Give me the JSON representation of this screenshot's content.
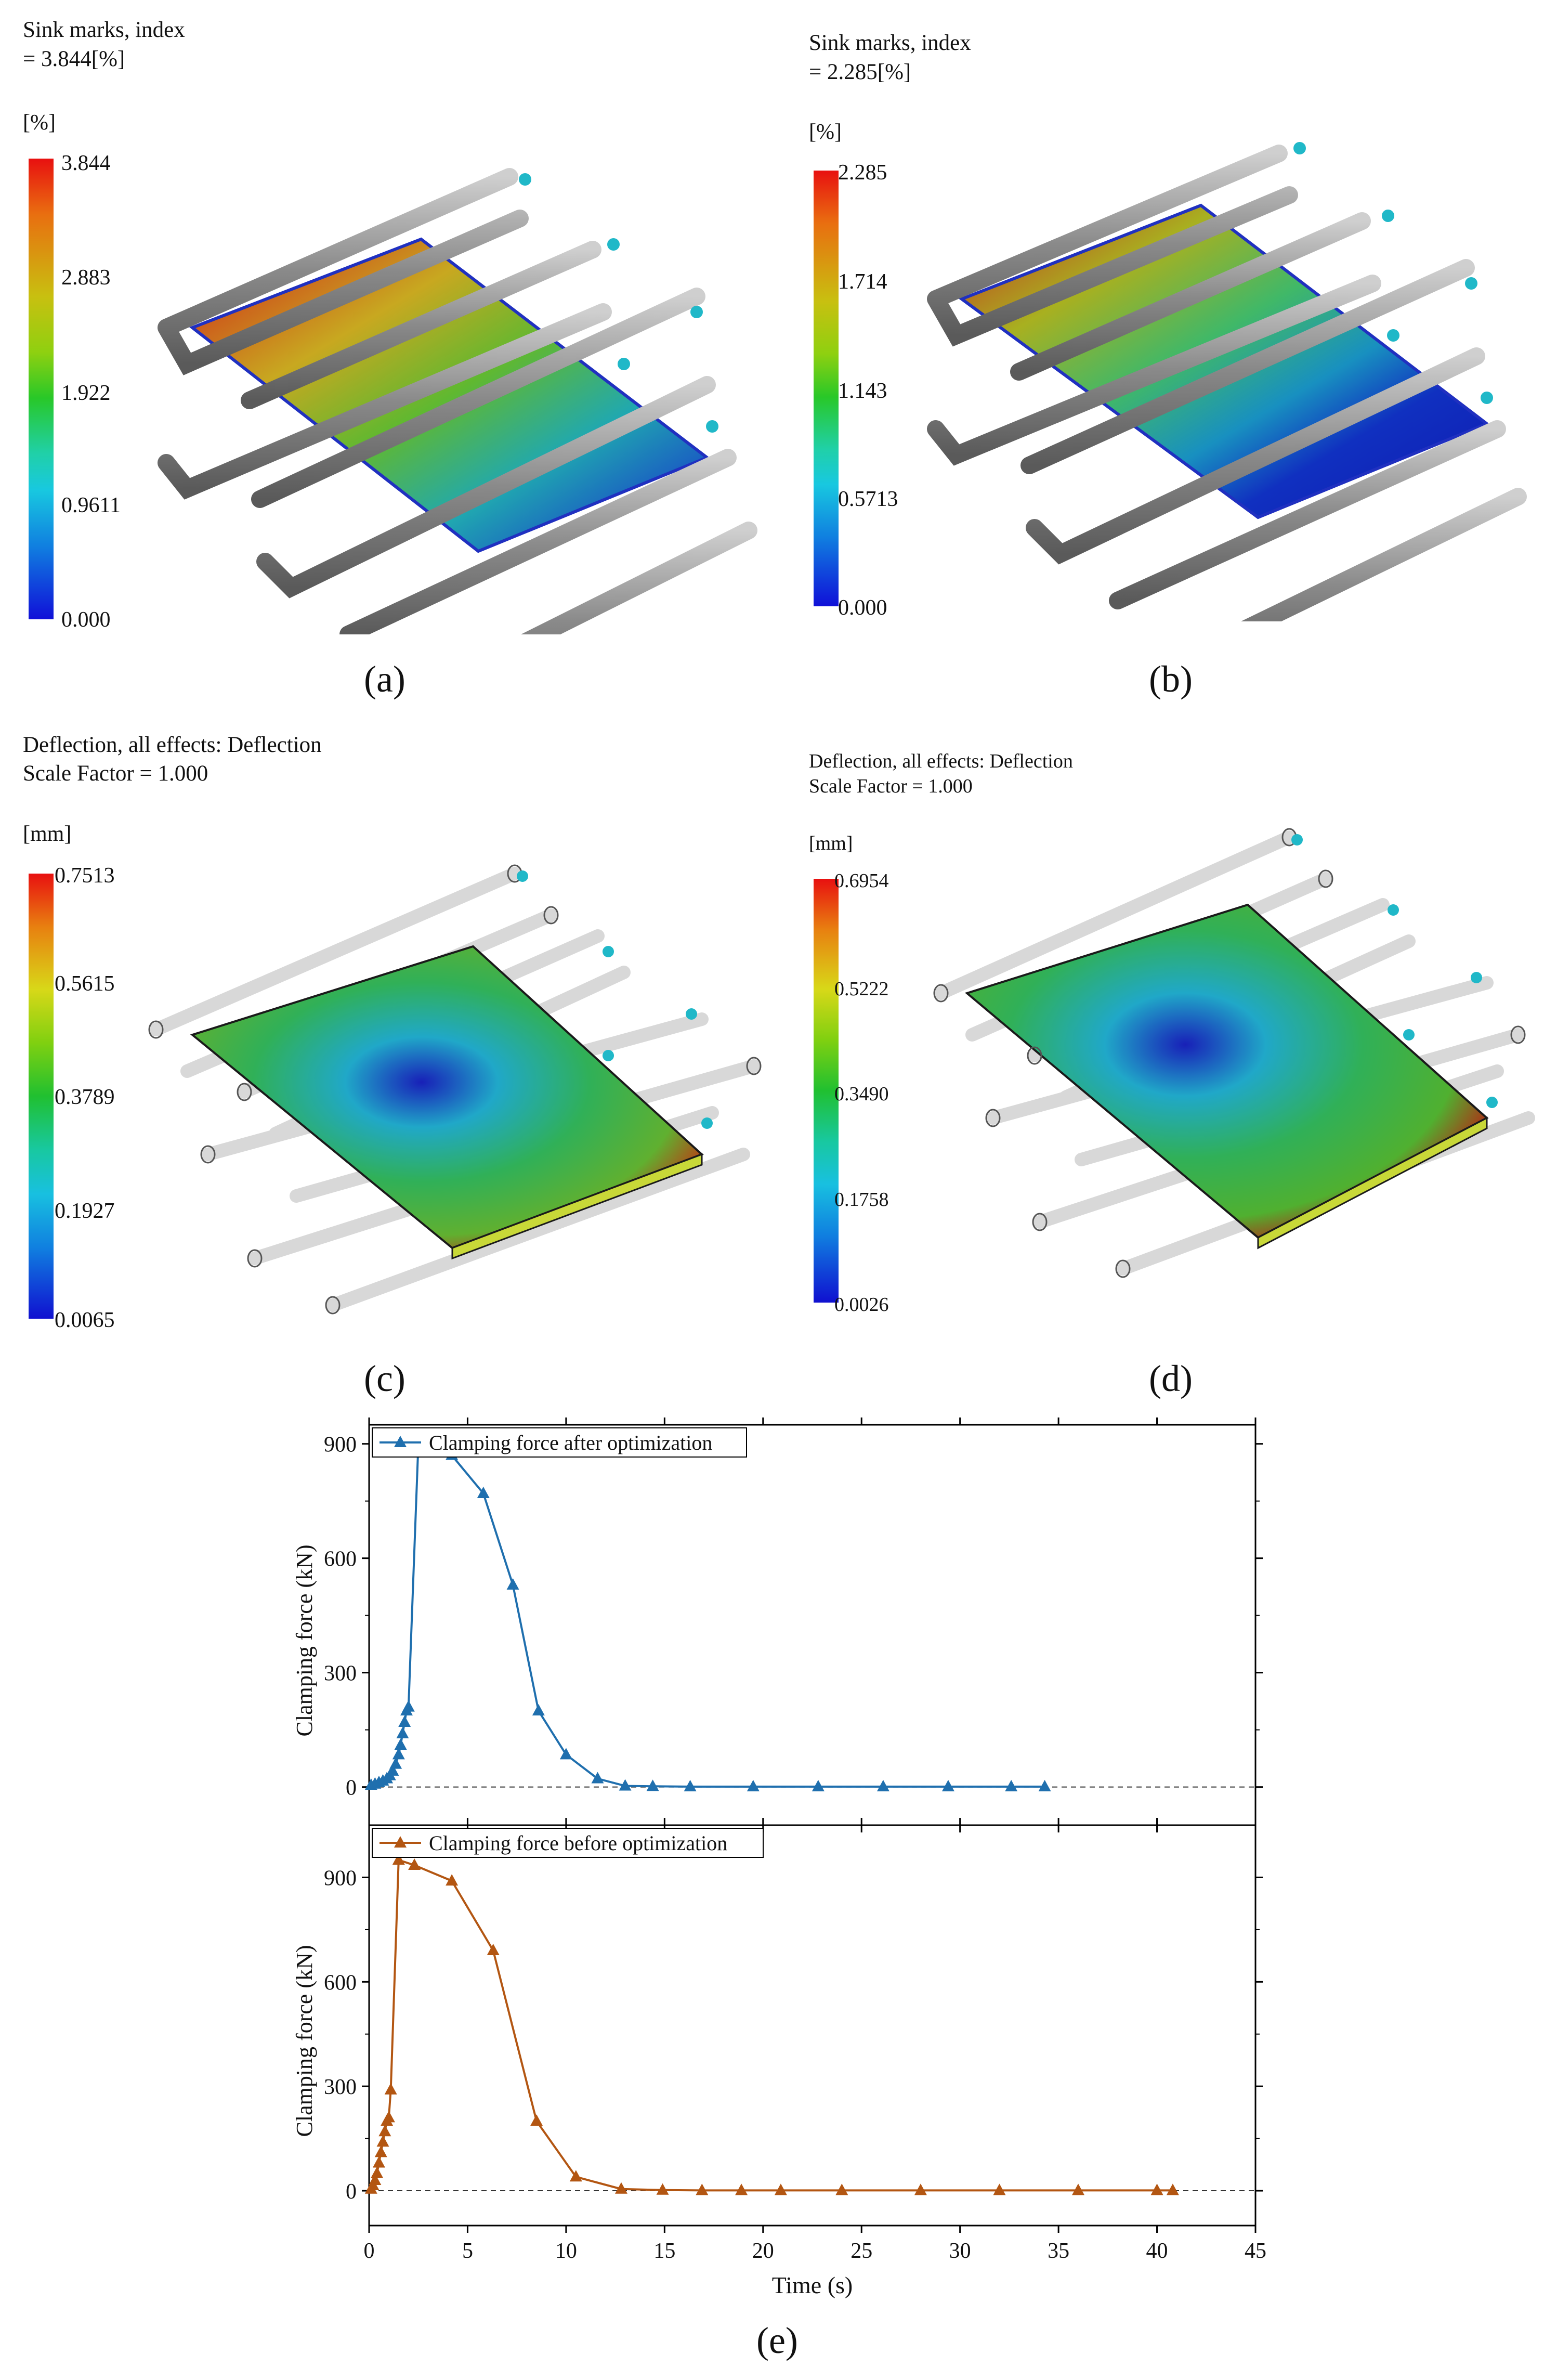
{
  "panel_a": {
    "title_line1": "Sink marks, index",
    "title_line2": "= 3.844[%]",
    "unit": "[%]",
    "ticks": [
      "3.844",
      "2.883",
      "1.922",
      "0.9611",
      "0.000"
    ],
    "caption": "(a)"
  },
  "panel_b": {
    "title_line1": "Sink marks, index",
    "title_line2": "= 2.285[%]",
    "unit": "[%]",
    "ticks": [
      "2.285",
      "1.714",
      "1.143",
      "0.5713",
      "0.000"
    ],
    "caption": "(b)"
  },
  "panel_c": {
    "title_line1": "Deflection, all effects: Deflection",
    "title_line2": "Scale Factor = 1.000",
    "unit": "[mm]",
    "ticks": [
      "0.7513",
      "0.5615",
      "0.3789",
      "0.1927",
      "0.0065"
    ],
    "caption": "(c)"
  },
  "panel_d": {
    "title_line1": "Deflection, all effects: Deflection",
    "title_line2": "Scale Factor = 1.000",
    "unit": "[mm]",
    "ticks": [
      "0.6954",
      "0.5222",
      "0.3490",
      "0.1758",
      "0.0026"
    ],
    "caption": "(d)"
  },
  "panel_e": {
    "caption": "(e)"
  },
  "colors": {
    "after": "#1f6fae",
    "before": "#b35612"
  },
  "chart_data": {
    "type": "line",
    "xlabel": "Time (s)",
    "xlim": [
      0,
      45
    ],
    "xticks": [
      "0",
      "5",
      "10",
      "15",
      "20",
      "25",
      "30",
      "35",
      "40",
      "45"
    ],
    "panels": [
      {
        "legend": "Clamping force after optimization",
        "ylabel": "Clamping force (kN)",
        "ylim": [
          -100,
          950
        ],
        "yticks": [
          "0",
          "300",
          "600",
          "900"
        ],
        "series": {
          "name": "Clamping force after optimization",
          "x": [
            0.1,
            0.3,
            0.5,
            0.7,
            0.9,
            1.05,
            1.2,
            1.35,
            1.5,
            1.6,
            1.7,
            1.8,
            1.9,
            2.0,
            2.5,
            3.0,
            4.2,
            5.8,
            7.3,
            8.6,
            10.0,
            11.6,
            13.0,
            14.4,
            16.3,
            19.5,
            22.8,
            26.1,
            29.4,
            32.6,
            34.3
          ],
          "y": [
            5,
            8,
            12,
            16,
            22,
            30,
            42,
            60,
            85,
            110,
            140,
            170,
            200,
            210,
            900,
            895,
            870,
            770,
            530,
            200,
            85,
            22,
            3,
            2,
            1,
            1,
            1,
            1,
            1,
            1,
            1
          ]
        }
      },
      {
        "legend": "Clamping force before optimization",
        "ylabel": "Clamping force (kN)",
        "ylim": [
          -100,
          1050
        ],
        "yticks": [
          "0",
          "300",
          "600",
          "900"
        ],
        "series": {
          "name": "Clamping force before optimization",
          "x": [
            0.1,
            0.2,
            0.3,
            0.4,
            0.5,
            0.6,
            0.7,
            0.8,
            0.9,
            1.0,
            1.1,
            1.5,
            2.3,
            4.2,
            6.3,
            8.5,
            10.5,
            12.8,
            14.9,
            16.9,
            18.9,
            20.9,
            24.0,
            28.0,
            32.0,
            36.0,
            40.0,
            40.8
          ],
          "y": [
            5,
            15,
            30,
            50,
            80,
            110,
            140,
            170,
            200,
            210,
            290,
            950,
            935,
            890,
            690,
            200,
            40,
            5,
            2,
            1,
            1,
            1,
            1,
            1,
            1,
            1,
            1,
            1
          ]
        }
      }
    ]
  }
}
